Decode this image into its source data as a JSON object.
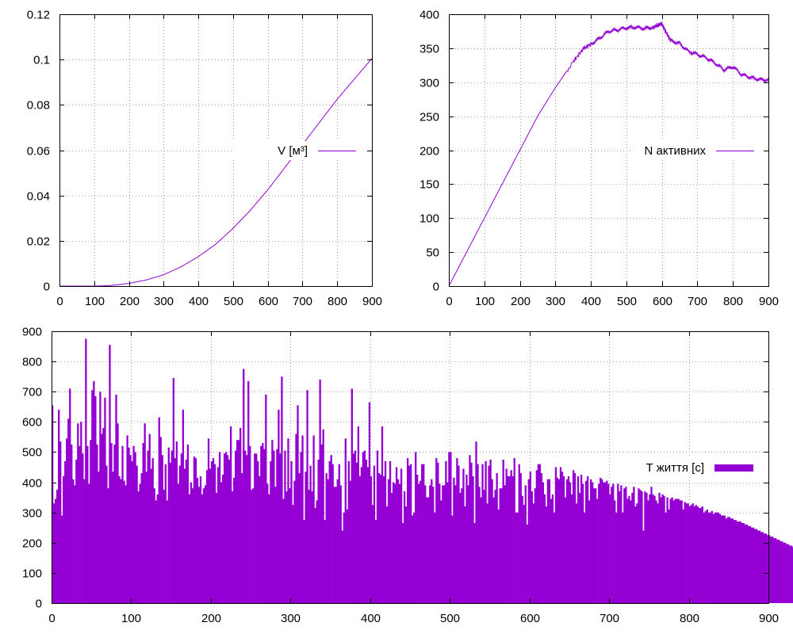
{
  "colors": {
    "series": "#9400d3",
    "axis": "#000000",
    "grid": "#a0a0a0",
    "background": "#ffffff"
  },
  "chart_data": [
    {
      "id": "volume",
      "type": "line",
      "title": "",
      "xlabel": "",
      "ylabel": "",
      "xlim": [
        0,
        900
      ],
      "ylim": [
        0,
        0.12
      ],
      "xticks": [
        0,
        100,
        200,
        300,
        400,
        500,
        600,
        700,
        800,
        900
      ],
      "yticks": [
        0,
        0.02,
        0.04,
        0.06,
        0.08,
        0.1,
        0.12
      ],
      "ytick_labels": [
        "0",
        "0.02",
        "0.04",
        "0.06",
        "0.08",
        "0.1",
        "0.12"
      ],
      "grid": true,
      "legend_position": "center-right",
      "series": [
        {
          "name": "V [м³]",
          "x": [
            0,
            100,
            125,
            150,
            200,
            250,
            300,
            350,
            400,
            450,
            500,
            550,
            600,
            650,
            700,
            750,
            800,
            850,
            900
          ],
          "y": [
            0,
            0,
            0.0001,
            0.0003,
            0.0012,
            0.0027,
            0.005,
            0.0085,
            0.013,
            0.0185,
            0.0255,
            0.0335,
            0.0425,
            0.0525,
            0.0625,
            0.0725,
            0.0825,
            0.0915,
            0.1005
          ]
        }
      ]
    },
    {
      "id": "active",
      "type": "line",
      "title": "",
      "xlabel": "",
      "ylabel": "",
      "xlim": [
        0,
        900
      ],
      "ylim": [
        0,
        400
      ],
      "xticks": [
        0,
        100,
        200,
        300,
        400,
        500,
        600,
        700,
        800,
        900
      ],
      "yticks": [
        0,
        50,
        100,
        150,
        200,
        250,
        300,
        350,
        400
      ],
      "grid": true,
      "legend_position": "center-right",
      "series": [
        {
          "name": "N активних",
          "x": [
            0,
            50,
            100,
            150,
            200,
            250,
            300,
            350,
            380,
            400,
            425,
            450,
            475,
            500,
            525,
            550,
            575,
            590,
            600,
            610,
            625,
            650,
            675,
            700,
            725,
            750,
            775,
            800,
            825,
            850,
            875,
            900
          ],
          "y": [
            0,
            50,
            100,
            150,
            200,
            250,
            292,
            330,
            350,
            356,
            365,
            375,
            377,
            380,
            381,
            379,
            381,
            384,
            386,
            375,
            361,
            357,
            345,
            341,
            336,
            328,
            318,
            323,
            311,
            307,
            304,
            303
          ]
        }
      ]
    },
    {
      "id": "lifetime",
      "type": "bar",
      "title": "",
      "xlabel": "",
      "ylabel": "",
      "xlim": [
        0,
        900
      ],
      "ylim": [
        0,
        900
      ],
      "xticks": [
        0,
        100,
        200,
        300,
        400,
        500,
        600,
        700,
        800,
        900
      ],
      "yticks": [
        0,
        100,
        200,
        300,
        400,
        500,
        600,
        700,
        800,
        900
      ],
      "grid": true,
      "legend_position": "center-right",
      "series": [
        {
          "name": "T життя [с]",
          "x_start": 0,
          "x_step": 2,
          "values": [
            655,
            330,
            345,
            375,
            640,
            535,
            290,
            420,
            470,
            545,
            610,
            710,
            525,
            410,
            390,
            475,
            595,
            520,
            600,
            495,
            410,
            875,
            520,
            395,
            540,
            705,
            735,
            685,
            525,
            435,
            700,
            560,
            580,
            680,
            455,
            380,
            855,
            530,
            435,
            525,
            690,
            595,
            420,
            410,
            520,
            405,
            390,
            555,
            515,
            490,
            470,
            520,
            500,
            455,
            370,
            395,
            430,
            530,
            595,
            435,
            505,
            560,
            445,
            480,
            380,
            340,
            360,
            615,
            550,
            490,
            375,
            460,
            340,
            515,
            465,
            505,
            745,
            480,
            535,
            395,
            455,
            495,
            640,
            445,
            475,
            525,
            360,
            400,
            380,
            485,
            480,
            415,
            385,
            420,
            360,
            380,
            390,
            440,
            545,
            445,
            470,
            480,
            460,
            365,
            450,
            500,
            400,
            425,
            495,
            500,
            490,
            475,
            585,
            370,
            415,
            505,
            540,
            540,
            580,
            430,
            775,
            505,
            490,
            735,
            520,
            375,
            380,
            495,
            495,
            470,
            420,
            520,
            530,
            510,
            690,
            395,
            360,
            470,
            540,
            505,
            385,
            510,
            640,
            495,
            750,
            345,
            505,
            370,
            545,
            380,
            470,
            325,
            405,
            560,
            655,
            430,
            500,
            555,
            275,
            435,
            705,
            375,
            455,
            370,
            555,
            315,
            340,
            475,
            740,
            525,
            575,
            275,
            430,
            410,
            470,
            490,
            460,
            385,
            385,
            410,
            460,
            390,
            240,
            300,
            545,
            310,
            470,
            405,
            710,
            495,
            505,
            465,
            585,
            420,
            450,
            500,
            505,
            475,
            450,
            665,
            420,
            325,
            455,
            275,
            505,
            430,
            425,
            585,
            420,
            470,
            320,
            410,
            470,
            365,
            400,
            395,
            450,
            410,
            395,
            445,
            265,
            370,
            320,
            480,
            455,
            460,
            290,
            300,
            500,
            425,
            395,
            405,
            460,
            460,
            390,
            350,
            350,
            390,
            410,
            385,
            300,
            480,
            465,
            395,
            340,
            390,
            390,
            470,
            400,
            500,
            500,
            290,
            415,
            390,
            480,
            455,
            365,
            380,
            445,
            320,
            425,
            390,
            490,
            465,
            420,
            265,
            535,
            460,
            385,
            350,
            460,
            375,
            470,
            330,
            455,
            475,
            410,
            350,
            375,
            430,
            310,
            380,
            380,
            475,
            390,
            445,
            420,
            420,
            440,
            420,
            480,
            300,
            300,
            460,
            430,
            355,
            325,
            390,
            260,
            410,
            435,
            370,
            330,
            380,
            440,
            460,
            460,
            430,
            400,
            360,
            320,
            410,
            410,
            345,
            360,
            300,
            450,
            415,
            410,
            450,
            435,
            420,
            350,
            410,
            420,
            400,
            360,
            440,
            430,
            330,
            420,
            365,
            425,
            395,
            300,
            405,
            420,
            340,
            410,
            400,
            380,
            380,
            345,
            395,
            415,
            410,
            400,
            400,
            405,
            395,
            360,
            385,
            395,
            340,
            300,
            395,
            370,
            390,
            300,
            380,
            385,
            345,
            355,
            340,
            365,
            385,
            320,
            330,
            380,
            375,
            370,
            240,
            370,
            365,
            340,
            360,
            385,
            360,
            355,
            340,
            330,
            365,
            350,
            360,
            355,
            300,
            350,
            310,
            345,
            350,
            340,
            345,
            345,
            345,
            340,
            340,
            310,
            335,
            330,
            330,
            320,
            325,
            330,
            320,
            325,
            320,
            315,
            315,
            320,
            300,
            305,
            310,
            300,
            300,
            305,
            295,
            300,
            300,
            300,
            295,
            290,
            290,
            290,
            280,
            285,
            285,
            280,
            280,
            275,
            275,
            270,
            270,
            270,
            265,
            265,
            260,
            260,
            255,
            255,
            250,
            250,
            245,
            245,
            240,
            240,
            235,
            235,
            230,
            230,
            225,
            225,
            220,
            220,
            215,
            215,
            210,
            210,
            205,
            205,
            200,
            200,
            195,
            195,
            190,
            190,
            185,
            185,
            180,
            180,
            175,
            175,
            170,
            170,
            165,
            165,
            160,
            160,
            155,
            155,
            150,
            150,
            145,
            145,
            140,
            140,
            135,
            135,
            130,
            130,
            125,
            125,
            120,
            120,
            115,
            115,
            110,
            110,
            105,
            105,
            100,
            100,
            95,
            95,
            90,
            90,
            85,
            85,
            80,
            80,
            75,
            75,
            70,
            70,
            65,
            65,
            60,
            60,
            55,
            55,
            50,
            50,
            45,
            45,
            40,
            40,
            35,
            35,
            30,
            30,
            25,
            25,
            20,
            20,
            15,
            15,
            10,
            10,
            5,
            5,
            2
          ]
        }
      ]
    }
  ]
}
